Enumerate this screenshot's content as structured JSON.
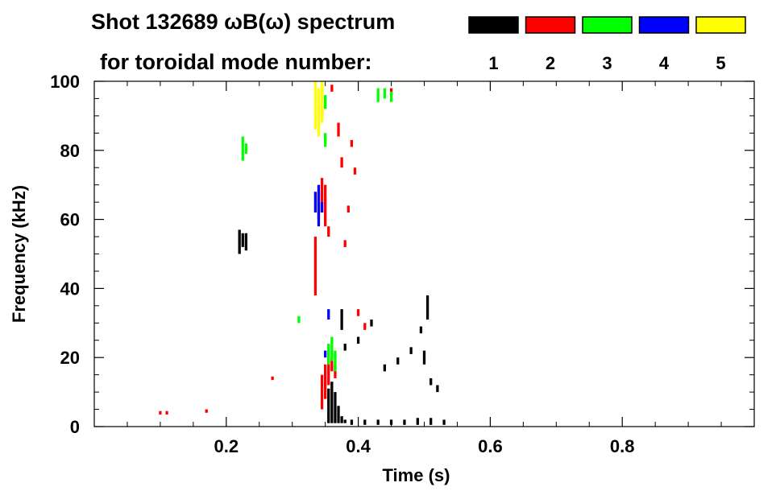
{
  "chart_data": {
    "type": "heatmap",
    "title_line1": "Shot 132689 ωB(ω) spectrum",
    "title_line2": "for toroidal mode number:",
    "xlabel": "Time (s)",
    "ylabel": "Frequency (kHz)",
    "xlim": [
      0.0,
      1.0
    ],
    "ylim": [
      0,
      100
    ],
    "x_ticks": [
      0.2,
      0.4,
      0.6,
      0.8
    ],
    "x_tick_labels": [
      "0.2",
      "0.4",
      "0.6",
      "0.8"
    ],
    "y_ticks": [
      0,
      20,
      40,
      60,
      80,
      100
    ],
    "y_tick_labels": [
      "0",
      "20",
      "40",
      "60",
      "80",
      "100"
    ],
    "legend": [
      {
        "label": "1",
        "color": "#000000"
      },
      {
        "label": "2",
        "color": "#ff0000"
      },
      {
        "label": "3",
        "color": "#00ff00"
      },
      {
        "label": "4",
        "color": "#0000ff"
      },
      {
        "label": "5",
        "color": "#ffff00"
      }
    ],
    "legend_placement": "top-right",
    "series": [
      {
        "mode": 1,
        "color": "#000000",
        "points": [
          [
            0.22,
            50,
            57
          ],
          [
            0.225,
            52,
            56
          ],
          [
            0.23,
            51,
            56
          ],
          [
            0.355,
            1,
            11
          ],
          [
            0.36,
            1,
            13
          ],
          [
            0.365,
            1,
            10
          ],
          [
            0.37,
            1,
            6
          ],
          [
            0.375,
            1,
            3
          ],
          [
            0.38,
            1,
            2
          ],
          [
            0.39,
            0.5,
            2
          ],
          [
            0.41,
            0.5,
            2
          ],
          [
            0.43,
            0.5,
            2
          ],
          [
            0.45,
            0.5,
            2
          ],
          [
            0.47,
            0.5,
            2
          ],
          [
            0.49,
            0.5,
            2.5
          ],
          [
            0.51,
            0.5,
            2.5
          ],
          [
            0.53,
            0.5,
            2
          ],
          [
            0.375,
            28,
            34
          ],
          [
            0.38,
            22,
            24
          ],
          [
            0.4,
            24,
            26
          ],
          [
            0.42,
            29,
            31
          ],
          [
            0.44,
            16,
            18
          ],
          [
            0.46,
            18,
            20
          ],
          [
            0.48,
            21,
            23
          ],
          [
            0.495,
            27,
            29
          ],
          [
            0.5,
            18,
            22
          ],
          [
            0.505,
            31,
            38
          ],
          [
            0.51,
            12,
            14
          ],
          [
            0.52,
            10,
            12
          ]
        ]
      },
      {
        "mode": 2,
        "color": "#ff0000",
        "points": [
          [
            0.1,
            3.5,
            4.5
          ],
          [
            0.11,
            3.5,
            4.5
          ],
          [
            0.17,
            4,
            5
          ],
          [
            0.27,
            13.5,
            14.5
          ],
          [
            0.345,
            5,
            15
          ],
          [
            0.35,
            8,
            18
          ],
          [
            0.355,
            12,
            22
          ],
          [
            0.36,
            16,
            20
          ],
          [
            0.365,
            14,
            18
          ],
          [
            0.335,
            38,
            55
          ],
          [
            0.34,
            60,
            68
          ],
          [
            0.345,
            62,
            72
          ],
          [
            0.35,
            58,
            70
          ],
          [
            0.355,
            55,
            58
          ],
          [
            0.345,
            90,
            93
          ],
          [
            0.36,
            97,
            99
          ],
          [
            0.37,
            84,
            88
          ],
          [
            0.375,
            75,
            78
          ],
          [
            0.38,
            52,
            54
          ],
          [
            0.385,
            62,
            64
          ],
          [
            0.39,
            81,
            83
          ],
          [
            0.395,
            73,
            75
          ],
          [
            0.4,
            32,
            34
          ],
          [
            0.41,
            28,
            30
          ],
          [
            0.45,
            96,
            98
          ]
        ]
      },
      {
        "mode": 3,
        "color": "#00ff00",
        "points": [
          [
            0.225,
            77,
            84
          ],
          [
            0.23,
            79,
            82
          ],
          [
            0.31,
            30,
            32
          ],
          [
            0.355,
            18,
            24
          ],
          [
            0.36,
            19,
            26
          ],
          [
            0.365,
            16,
            22
          ],
          [
            0.345,
            96,
            99
          ],
          [
            0.35,
            92,
            96
          ],
          [
            0.35,
            81,
            85
          ],
          [
            0.43,
            94,
            98
          ],
          [
            0.44,
            95,
            98
          ],
          [
            0.45,
            94,
            97
          ]
        ]
      },
      {
        "mode": 4,
        "color": "#0000ff",
        "points": [
          [
            0.335,
            62,
            68
          ],
          [
            0.34,
            58,
            70
          ],
          [
            0.345,
            62,
            65
          ],
          [
            0.35,
            20,
            22
          ],
          [
            0.355,
            31,
            34
          ]
        ]
      },
      {
        "mode": 5,
        "color": "#ffff00",
        "points": [
          [
            0.335,
            86,
            100
          ],
          [
            0.34,
            84,
            98
          ],
          [
            0.345,
            88,
            100
          ]
        ]
      }
    ]
  }
}
